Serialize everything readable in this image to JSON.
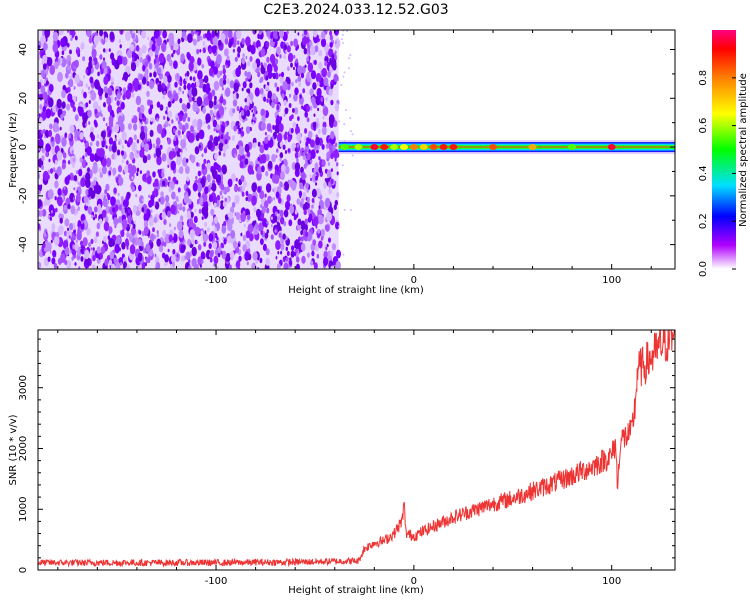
{
  "title": "C2E3.2024.033.12.52.G03",
  "chart_data": [
    {
      "type": "heatmap",
      "xlabel": "Height of straight line (km)",
      "ylabel": "Frequency (Hz)",
      "xlim": [
        -190,
        132
      ],
      "ylim": [
        -50,
        48
      ],
      "xticks": [
        -100,
        0,
        100
      ],
      "xtick_labels": [
        "-100",
        "0",
        "100"
      ],
      "yticks": [
        -40,
        -20,
        0,
        20,
        40
      ],
      "ytick_labels": [
        "-40",
        "-20",
        "0",
        "20",
        "40"
      ],
      "noise_region_x": [
        -190,
        -38
      ],
      "signal_line": {
        "x_start": -38,
        "x_end": 132,
        "frequency": 0,
        "peaks_x": [
          -35,
          -28,
          -20,
          -15,
          -10,
          -5,
          0,
          5,
          10,
          15,
          20,
          40,
          60,
          80,
          100
        ],
        "peaks_amp": [
          0.55,
          0.6,
          0.95,
          0.9,
          0.6,
          0.65,
          0.8,
          0.7,
          0.85,
          0.9,
          0.9,
          0.85,
          0.75,
          0.55,
          0.95
        ]
      },
      "colorbar": {
        "label": "Normalized spectral amplitude",
        "range": [
          0,
          1
        ],
        "ticks": [
          0.0,
          0.2,
          0.4,
          0.6,
          0.8
        ],
        "tick_labels": [
          "0.0",
          "0.2",
          "0.4",
          "0.6",
          "0.8"
        ]
      },
      "grid": false
    },
    {
      "type": "line",
      "xlabel": "Height of straight line (km)",
      "ylabel": "SNR (10 * v/v)",
      "xlim": [
        -190,
        132
      ],
      "ylim": [
        0,
        3950
      ],
      "xticks": [
        -100,
        0,
        100
      ],
      "xtick_labels": [
        "-100",
        "0",
        "100"
      ],
      "yticks": [
        0,
        1000,
        2000,
        3000
      ],
      "ytick_labels": [
        "0",
        "1000",
        "2000",
        "3000"
      ],
      "series": [
        {
          "color": "#ee3333",
          "x": [
            -190,
            -150,
            -100,
            -60,
            -28,
            -25,
            -20,
            -15,
            -10,
            -6,
            -5,
            -4,
            0,
            10,
            20,
            30,
            40,
            50,
            60,
            70,
            80,
            90,
            100,
            102,
            103,
            104,
            105,
            110,
            112,
            113,
            116,
            120,
            125,
            132
          ],
          "y": [
            120,
            120,
            120,
            130,
            150,
            350,
            450,
            480,
            600,
            800,
            1100,
            600,
            560,
            720,
            870,
            980,
            1090,
            1180,
            1300,
            1420,
            1550,
            1700,
            1880,
            2100,
            1300,
            2000,
            2150,
            2250,
            2750,
            3300,
            3350,
            3500,
            3700,
            3850
          ]
        }
      ],
      "grid": false
    }
  ]
}
